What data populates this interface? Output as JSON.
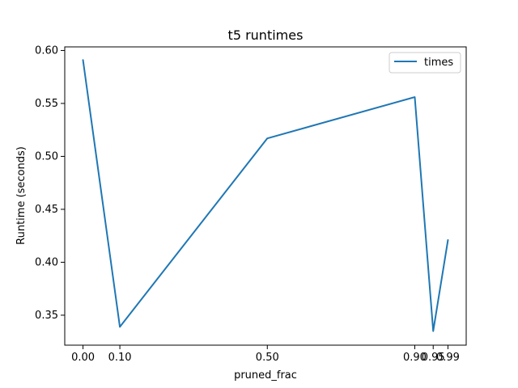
{
  "chart_data": {
    "type": "line",
    "title": "t5 runtimes",
    "xlabel": "pruned_frac",
    "ylabel": "Runtime (seconds)",
    "x": [
      0.0,
      0.1,
      0.5,
      0.9,
      0.95,
      0.99
    ],
    "x_tick_labels": [
      "0.00",
      "0.10",
      "0.50",
      "0.90",
      "0.95",
      "0.99"
    ],
    "y_ticks": [
      0.35,
      0.4,
      0.45,
      0.5,
      0.55,
      0.6
    ],
    "y_tick_labels": [
      "0.35",
      "0.40",
      "0.45",
      "0.50",
      "0.55",
      "0.60"
    ],
    "xlim": [
      -0.0495,
      1.0395
    ],
    "ylim": [
      0.3217,
      0.6034
    ],
    "series": [
      {
        "name": "times",
        "color": "#1f77b4",
        "values": [
          0.591,
          0.339,
          0.517,
          0.556,
          0.335,
          0.421
        ]
      }
    ],
    "legend_position": "top-right",
    "grid": false
  }
}
